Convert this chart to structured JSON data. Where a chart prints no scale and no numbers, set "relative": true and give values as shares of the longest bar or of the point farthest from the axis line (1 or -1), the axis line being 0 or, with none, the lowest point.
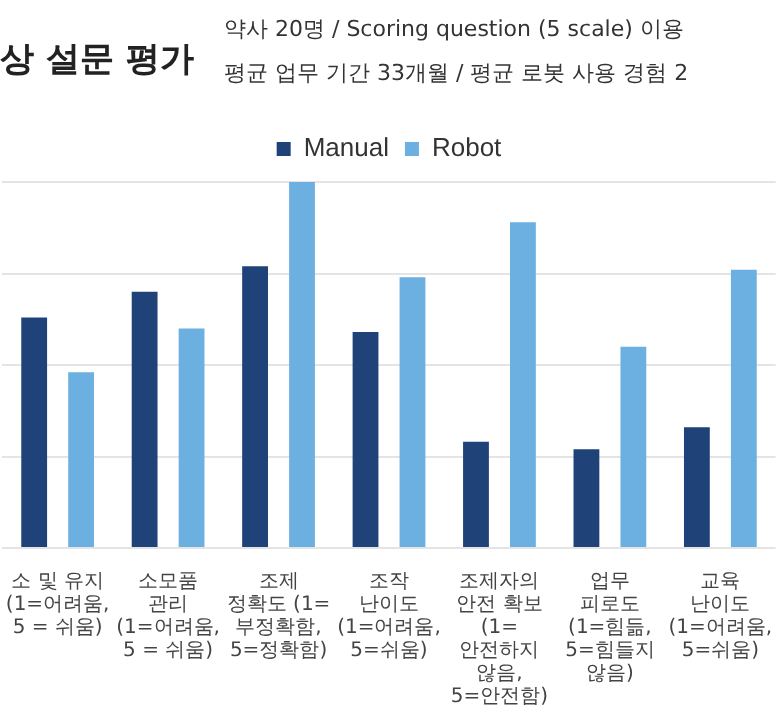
{
  "chart_data": {
    "type": "bar",
    "title": "상 설문 평가",
    "subtitle": "약사 20명 / Scoring question (5 scale) 이용\n평균 업무 기간 33개월 / 평균 로봇 사용 경험 2",
    "categories": [
      "소 및 유지 (1=어려움, 5 = 쉬움)",
      "소모품 관리 (1=어려움, 5 = 쉬움)",
      "조제 정확도 (1=부정확함, 5=정확함)",
      "조작 난이도 (1=어려움, 5=쉬움)",
      "조제자의 안전 확보 (1=안전하지 않음, 5=안전함)",
      "업무 피로도 (1=힘듦, 5=힘들지 않음)",
      "교육 난이도 (1=어려움, 5=쉬움)"
    ],
    "series": [
      {
        "name": "Manual",
        "color": "#1f4278",
        "values": [
          0.63,
          0.7,
          0.77,
          0.59,
          0.29,
          0.27,
          0.33
        ]
      },
      {
        "name": "Robot",
        "color": "#6cb0e2",
        "values": [
          0.48,
          0.6,
          1,
          0.74,
          0.89,
          0.55,
          0.76
        ]
      }
    ],
    "relative": true,
    "grid": "y",
    "legend": "top"
  }
}
